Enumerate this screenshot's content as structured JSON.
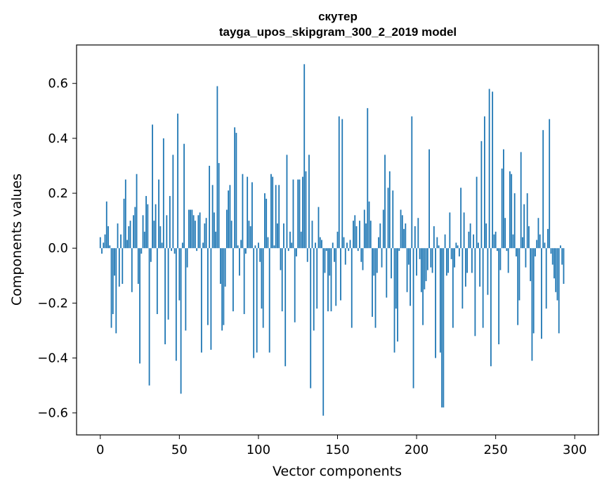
{
  "chart_data": {
    "type": "bar",
    "title": "скутер",
    "subtitle": "tayga_upos_skipgram_300_2_2019 model",
    "xlabel": "Vector components",
    "ylabel": "Components values",
    "xlim": [
      -15,
      315
    ],
    "ylim": [
      -0.68,
      0.74
    ],
    "xticks": [
      0,
      50,
      100,
      150,
      200,
      250,
      300
    ],
    "xtick_labels": [
      "0",
      "50",
      "100",
      "150",
      "200",
      "250",
      "300"
    ],
    "yticks": [
      -0.6,
      -0.4,
      -0.2,
      0.0,
      0.2,
      0.4,
      0.6
    ],
    "ytick_labels": [
      "−0.6",
      "−0.4",
      "−0.2",
      "0.0",
      "0.2",
      "0.4",
      "0.6"
    ],
    "bar_color": "#1f77b4",
    "grid": false,
    "values": [
      0.04,
      -0.02,
      0.02,
      0.05,
      0.17,
      0.08,
      0.01,
      -0.29,
      -0.24,
      -0.1,
      -0.31,
      0.09,
      -0.14,
      0.05,
      -0.13,
      0.18,
      0.25,
      0.03,
      0.08,
      0.1,
      -0.16,
      0.12,
      0.15,
      0.27,
      -0.13,
      -0.42,
      -0.02,
      0.12,
      0.06,
      0.19,
      0.16,
      -0.5,
      -0.05,
      0.45,
      0.1,
      0.16,
      -0.24,
      0.25,
      0.08,
      0.02,
      0.4,
      -0.35,
      0.12,
      -0.26,
      0.19,
      -0.01,
      0.34,
      -0.02,
      -0.41,
      0.49,
      -0.19,
      -0.53,
      0.02,
      0.38,
      -0.3,
      -0.07,
      0.14,
      0.14,
      0.14,
      0.12,
      0.1,
      -0.01,
      0.12,
      0.13,
      -0.38,
      0.02,
      0.09,
      0.11,
      -0.28,
      0.3,
      -0.37,
      0.23,
      0.13,
      0.06,
      0.59,
      0.31,
      -0.13,
      -0.3,
      -0.28,
      -0.14,
      0.14,
      0.21,
      0.23,
      0.1,
      -0.23,
      0.44,
      0.42,
      0.01,
      -0.1,
      0.03,
      0.27,
      -0.24,
      -0.02,
      0.26,
      0.1,
      0.08,
      0.24,
      -0.4,
      0.01,
      -0.38,
      0.02,
      -0.05,
      -0.22,
      -0.29,
      0.2,
      0.18,
      0.04,
      -0.38,
      0.27,
      0.26,
      0.01,
      0.23,
      0.09,
      0.23,
      -0.08,
      -0.23,
      0.09,
      -0.43,
      0.34,
      -0.01,
      0.06,
      0.02,
      0.25,
      -0.27,
      -0.03,
      0.25,
      0.25,
      0.06,
      0.26,
      0.67,
      0.28,
      -0.05,
      0.34,
      -0.51,
      0.1,
      -0.3,
      0.02,
      -0.22,
      0.15,
      0.04,
      0.03,
      -0.61,
      -0.09,
      -0.01,
      -0.23,
      -0.1,
      -0.23,
      0.02,
      -0.05,
      -0.21,
      0.06,
      0.48,
      -0.19,
      0.47,
      0.04,
      -0.06,
      0.02,
      -0.01,
      0.03,
      -0.29,
      0.1,
      0.12,
      0.08,
      -0.01,
      0.1,
      -0.05,
      -0.08,
      0.14,
      0.09,
      0.51,
      0.17,
      0.1,
      -0.25,
      -0.1,
      -0.29,
      -0.09,
      0.04,
      0.09,
      -0.07,
      0.14,
      0.34,
      -0.18,
      0.22,
      0.28,
      -0.11,
      0.21,
      -0.38,
      -0.22,
      -0.34,
      -0.01,
      0.14,
      0.12,
      0.07,
      0.09,
      -0.16,
      -0.06,
      -0.21,
      0.48,
      -0.51,
      0.08,
      -0.1,
      0.11,
      -0.04,
      -0.16,
      -0.28,
      -0.15,
      -0.12,
      -0.08,
      0.36,
      -0.07,
      -0.09,
      0.08,
      -0.4,
      0.04,
      0.01,
      -0.38,
      -0.58,
      -0.58,
      0.05,
      -0.1,
      -0.09,
      0.13,
      -0.04,
      -0.29,
      -0.07,
      0.02,
      0.01,
      -0.03,
      0.22,
      -0.22,
      0.13,
      -0.14,
      -0.09,
      0.06,
      0.09,
      -0.09,
      0.05,
      -0.32,
      0.26,
      0.02,
      -0.14,
      0.39,
      -0.29,
      0.48,
      0.09,
      -0.17,
      0.58,
      -0.43,
      0.57,
      0.05,
      0.06,
      -0.01,
      -0.35,
      -0.08,
      0.29,
      0.36,
      0.11,
      -0.01,
      -0.09,
      0.28,
      0.27,
      0.05,
      0.2,
      -0.03,
      -0.28,
      -0.19,
      0.35,
      0.04,
      0.16,
      -0.07,
      0.2,
      0.08,
      -0.12,
      -0.41,
      -0.31,
      -0.03,
      0.03,
      0.11,
      0.05,
      -0.33,
      0.43,
      0.02,
      -0.22,
      0.07,
      0.47,
      -0.02,
      -0.06,
      -0.11,
      -0.16,
      -0.19,
      -0.31,
      0.01,
      -0.06,
      -0.13
    ]
  }
}
